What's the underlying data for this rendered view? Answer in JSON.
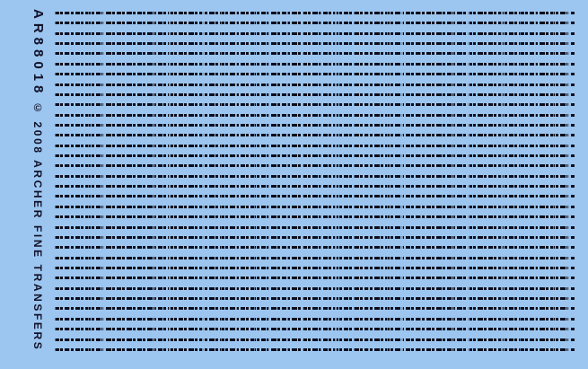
{
  "sheet": {
    "product_code": "AR88018",
    "copyright": "© 2008 ARCHER FINE TRANSFERS",
    "colors": {
      "background": "#9CC6EF",
      "ink": "#0D0D1C",
      "text": "#11112A"
    },
    "decal_lines": {
      "count": 34,
      "orientation": "horizontal",
      "style": "dashed-stitch"
    }
  }
}
